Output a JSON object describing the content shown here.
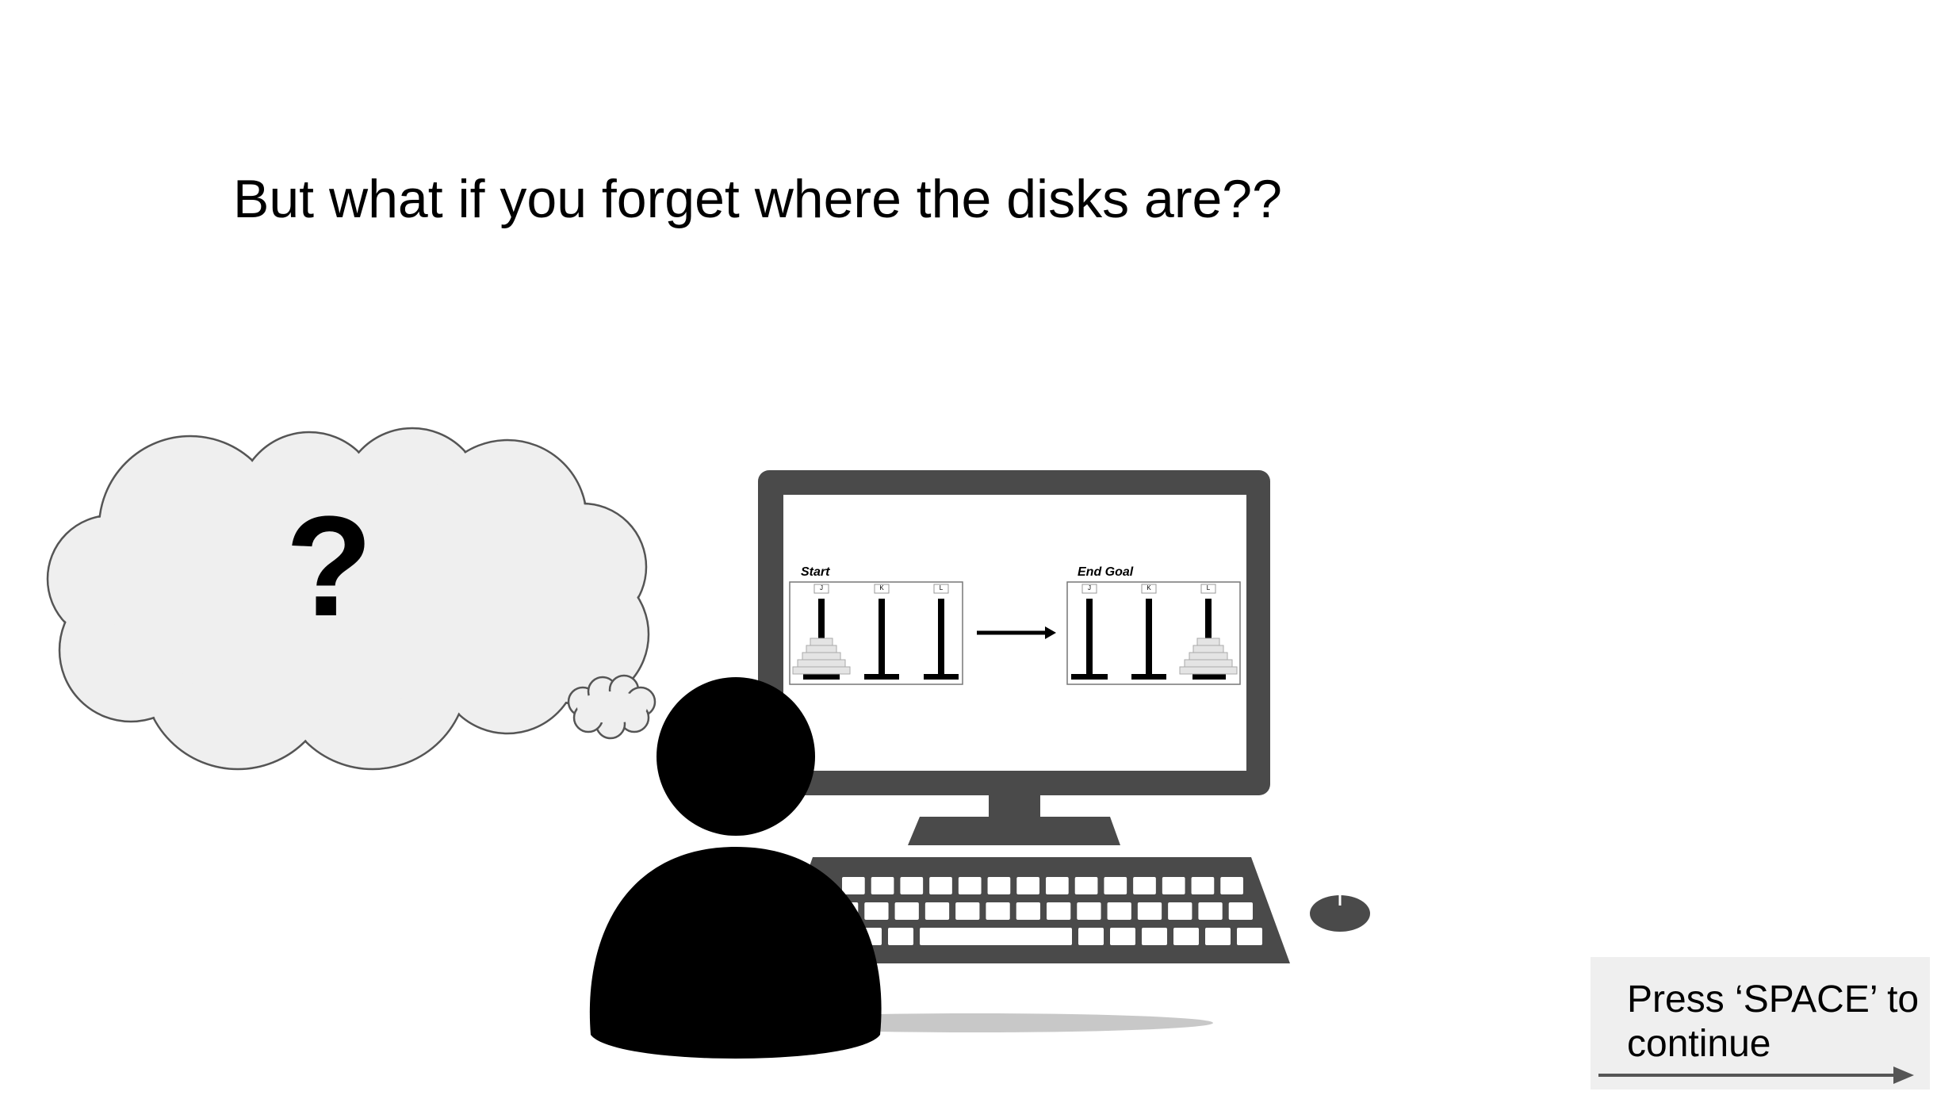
{
  "slide": {
    "heading": "But what if you forget where the disks are??",
    "thought_text": "?",
    "continue_label": "Press ‘SPACE’ to continue"
  },
  "screen_content": {
    "start_label": "Start",
    "goal_label": "End Goal",
    "peg_labels": [
      "J",
      "K",
      "L"
    ]
  },
  "colors": {
    "background": "#ffffff",
    "cloud_fill": "#efefef",
    "cloud_stroke": "#555555",
    "monitor_frame": "#4a4a4a",
    "keyboard": "#4a4a4a",
    "person": "#000000",
    "continue_box": "#efefef"
  },
  "icons": {
    "thought_bubble": "thought-bubble-icon",
    "person": "person-silhouette-icon",
    "monitor": "monitor-icon",
    "keyboard": "keyboard-icon",
    "mouse": "mouse-icon",
    "continue_arrow": "arrow-right-icon"
  }
}
